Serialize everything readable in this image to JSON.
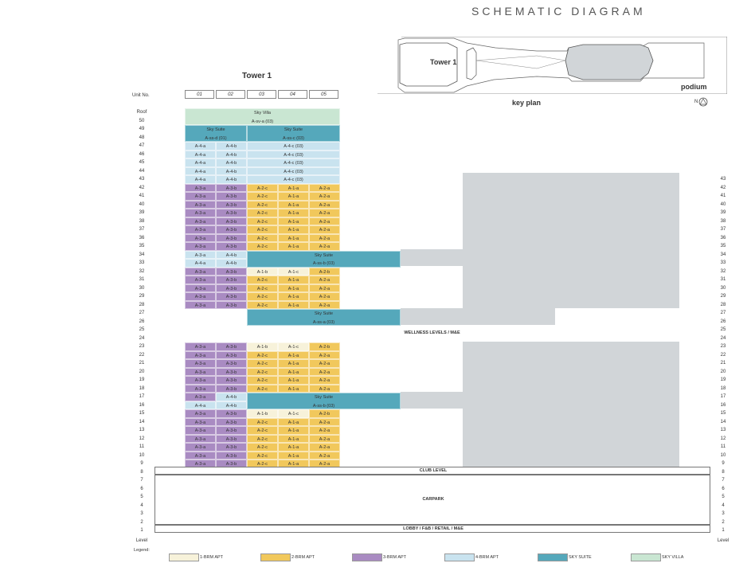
{
  "title": "SCHEMATIC DIAGRAM",
  "tower_title": "Tower 1",
  "unit_no_label": "Unit No.",
  "unit_headers": [
    "01",
    "02",
    "03",
    "04",
    "05"
  ],
  "key_plan": {
    "label": "key plan",
    "tower_label": "Tower 1",
    "podium_label": "podium",
    "north_label": "N"
  },
  "colors": {
    "1brm": "#f7f2da",
    "2brm": "#f1c85c",
    "3brm": "#a98bc2",
    "4brm": "#c9e3ef",
    "skysuite": "#55a8bb",
    "skyvilla": "#c9e6d2",
    "grey": "#d1d5d8"
  },
  "left_levels": [
    "Roof",
    "50",
    "49",
    "48",
    "47",
    "46",
    "45",
    "44",
    "43",
    "42",
    "41",
    "40",
    "39",
    "38",
    "37",
    "36",
    "35",
    "34",
    "33",
    "32",
    "31",
    "30",
    "29",
    "28",
    "27",
    "26",
    "25",
    "24",
    "23",
    "22",
    "21",
    "20",
    "19",
    "18",
    "17",
    "16",
    "15",
    "14",
    "13",
    "12",
    "11",
    "10",
    "9",
    "8",
    "7",
    "6",
    "5",
    "4",
    "3",
    "2",
    "1",
    "Level"
  ],
  "right_levels": [
    "43",
    "42",
    "41",
    "40",
    "39",
    "38",
    "37",
    "36",
    "35",
    "34",
    "33",
    "32",
    "31",
    "30",
    "29",
    "28",
    "27",
    "26",
    "25",
    "24",
    "23",
    "22",
    "21",
    "20",
    "19",
    "18",
    "17",
    "16",
    "15",
    "14",
    "13",
    "12",
    "11",
    "10",
    "9",
    "8",
    "7",
    "6",
    "5",
    "4",
    "3",
    "2",
    "1",
    "Level"
  ],
  "blocks": {
    "sky_villa_name": "Sky Villa",
    "sky_villa_code": "A-sv-a (03)",
    "sky_suite_name": "Sky Suite",
    "ss_d": "A-ss-d (01)",
    "ss_c": "A-ss-c (03)",
    "ss_b": "A-ss-b (03)",
    "ss_a": "A-ss-a (03)",
    "a4a": "A-4-a",
    "a4b": "A-4-b",
    "a4c": "A-4-c (03)",
    "a3a": "A-3-a",
    "a3b": "A-3-b",
    "a2c": "A-2-c",
    "a1a": "A-1-a",
    "a2a": "A-2-a",
    "a1b": "A-1-b",
    "a1c": "A-1-c",
    "a2b": "A-2-b"
  },
  "podium": {
    "wellness": "WELLNESS LEVELS / M&E",
    "club": "CLUB LEVEL",
    "carpark": "CARPARK",
    "lobby": "LOBBY / F&B / RETAIL / M&E"
  },
  "legend": {
    "title": "Legend:",
    "items": [
      {
        "key": "1brm",
        "label": "1-BRM APT"
      },
      {
        "key": "2brm",
        "label": "2-BRM APT"
      },
      {
        "key": "3brm",
        "label": "3-BRM APT"
      },
      {
        "key": "4brm",
        "label": "4-BRM APT"
      },
      {
        "key": "skysuite",
        "label": "SKY SUITE"
      },
      {
        "key": "skyvilla",
        "label": "SKY VILLA"
      }
    ]
  }
}
